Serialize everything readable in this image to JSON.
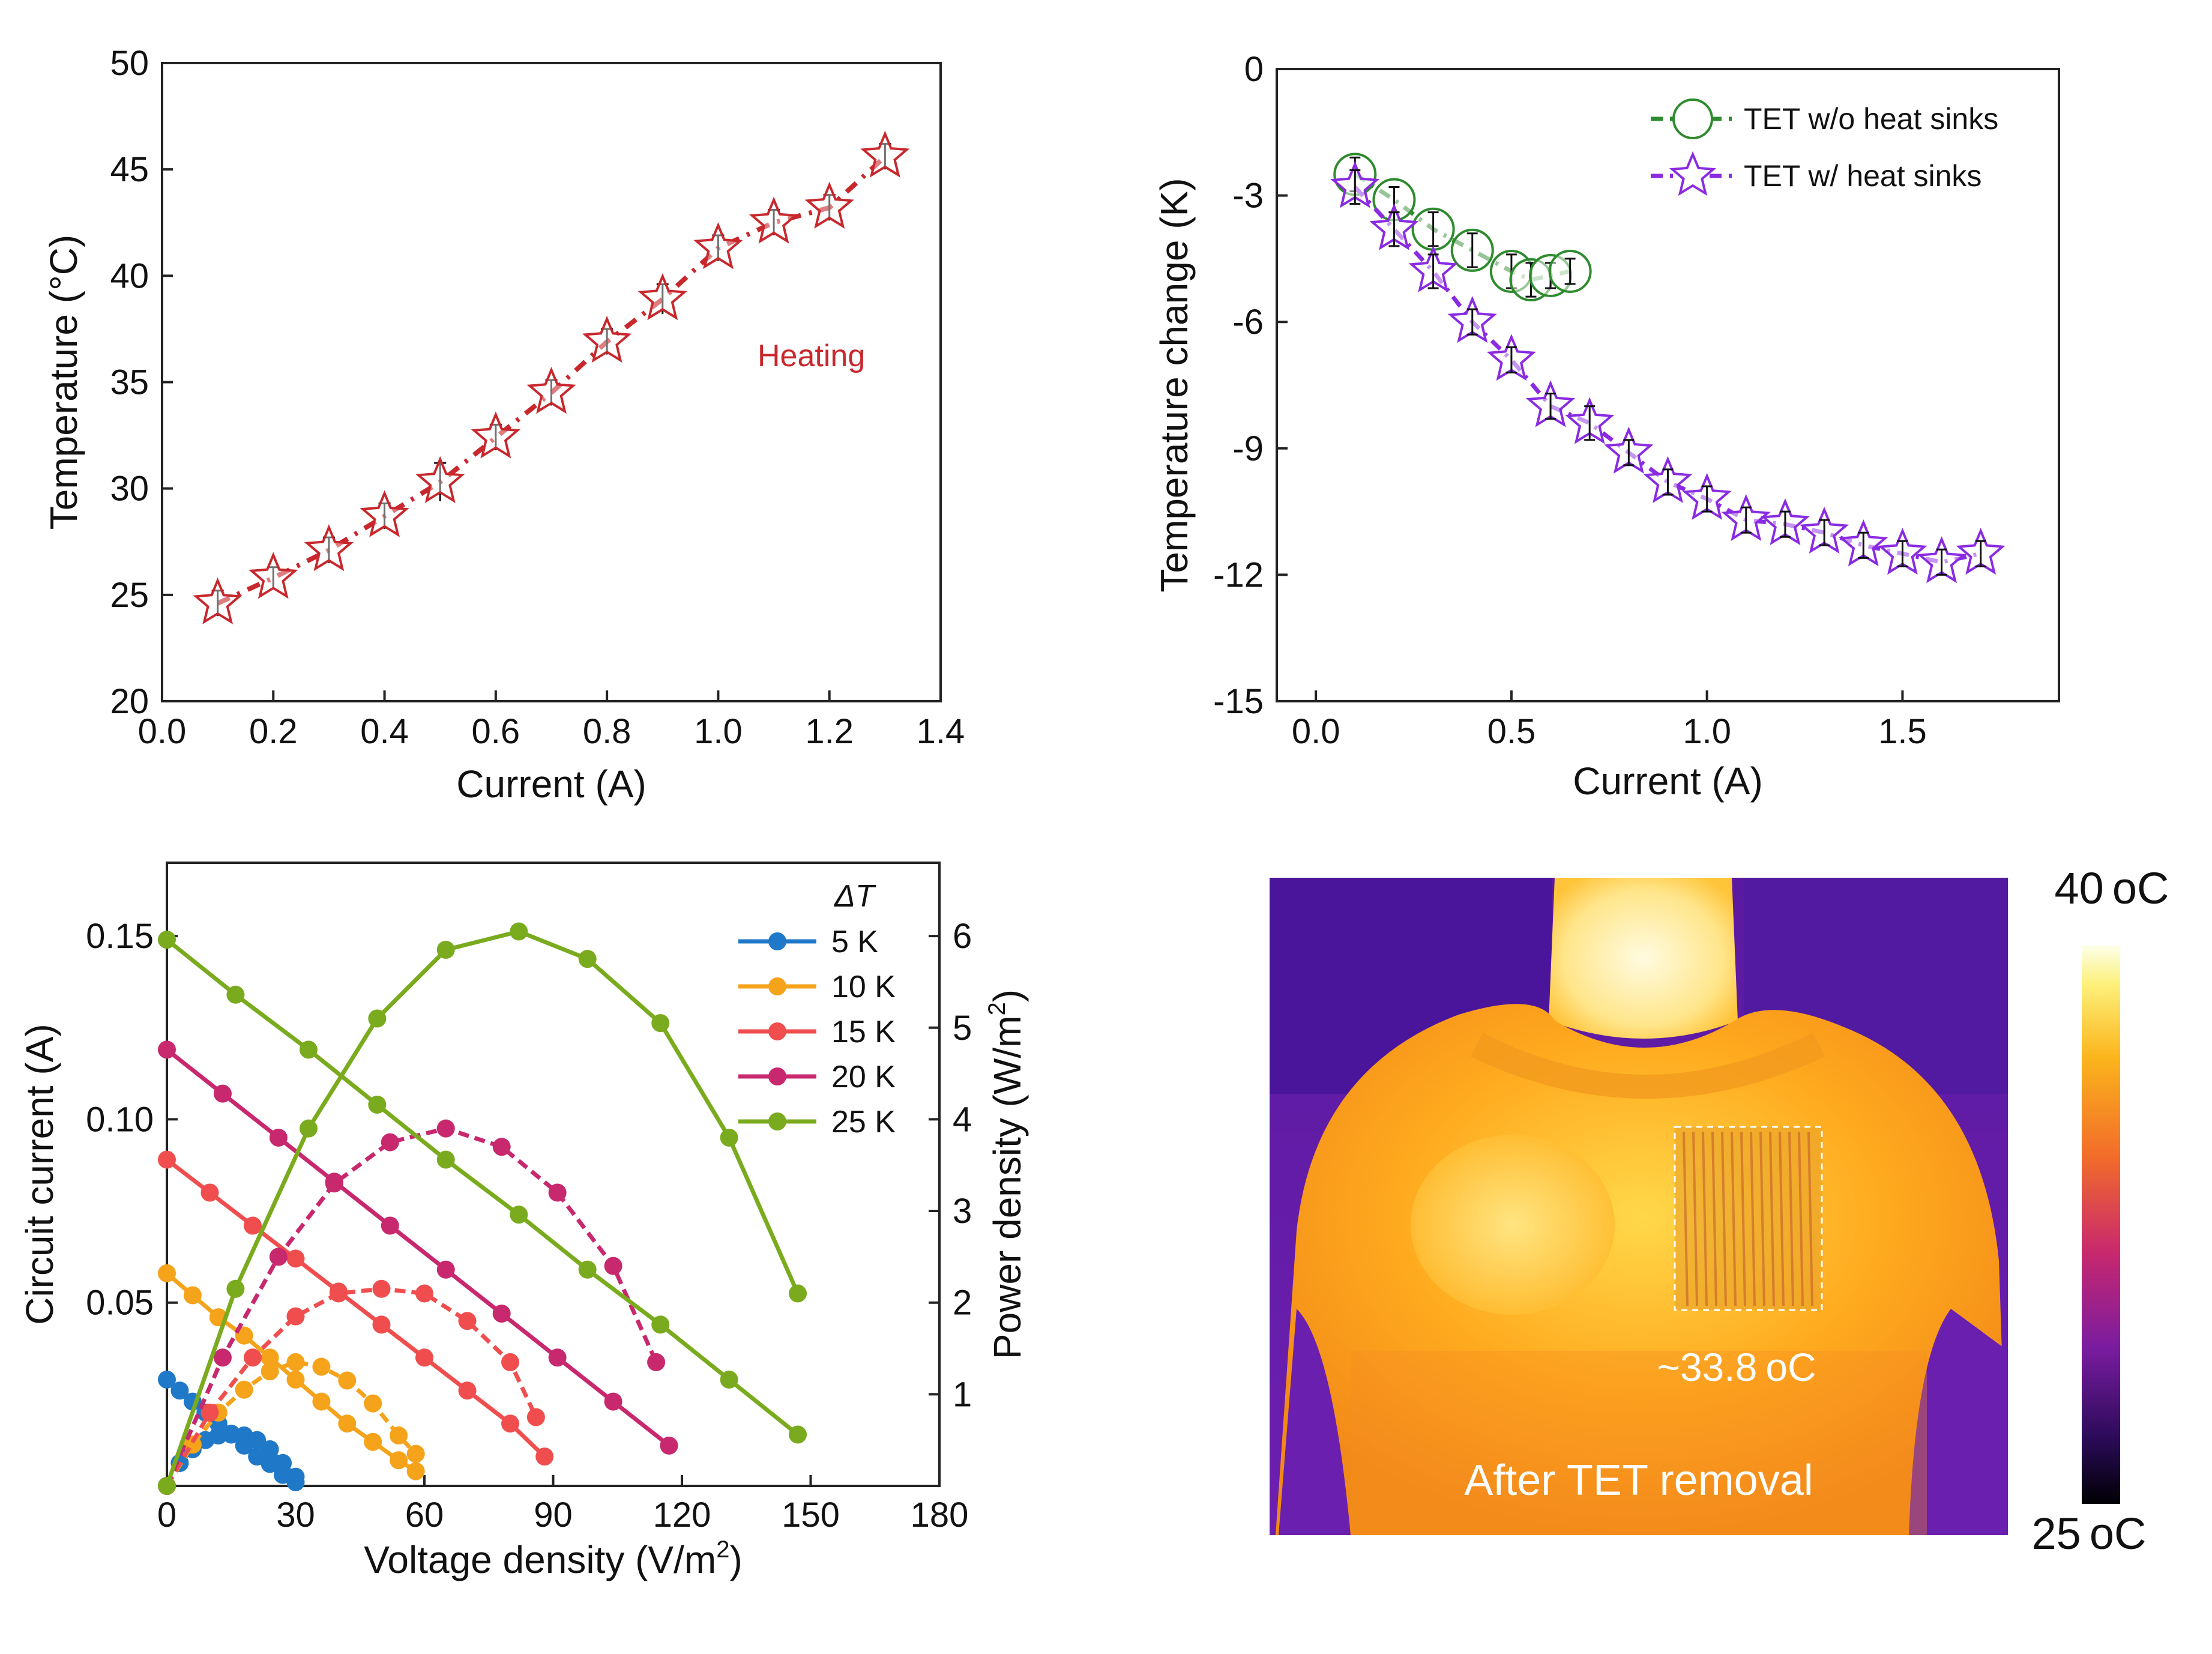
{
  "colors": {
    "heating": "#c8282d",
    "no_sinks": "#2e8b2e",
    "with_sinks": "#8a2be2",
    "s5": "#1f78c8",
    "s10": "#f5a31a",
    "s15": "#f04e4e",
    "s20": "#c8286e",
    "s25": "#7aab1e"
  },
  "chart_data": [
    {
      "id": "a",
      "type": "line",
      "xlabel": "Current (A)",
      "ylabel": "Temperature (°C)",
      "xlim": [
        0.0,
        1.4
      ],
      "ylim": [
        20,
        50
      ],
      "xticks": [
        "0.0",
        "0.2",
        "0.4",
        "0.6",
        "0.8",
        "1.0",
        "1.2",
        "1.4"
      ],
      "yticks": [
        "20",
        "25",
        "30",
        "35",
        "40",
        "45",
        "50"
      ],
      "annotation": "Heating",
      "series": [
        {
          "x": [
            0.1,
            0.2,
            0.3,
            0.4,
            0.5,
            0.6,
            0.7,
            0.8,
            0.9,
            1.0,
            1.1,
            1.2,
            1.3
          ],
          "y": [
            24.6,
            25.8,
            27.1,
            28.7,
            30.3,
            32.4,
            34.5,
            36.9,
            38.9,
            41.3,
            42.5,
            43.2,
            45.6
          ],
          "err": [
            0.6,
            0.5,
            0.6,
            0.6,
            0.9,
            0.6,
            0.6,
            0.6,
            0.7,
            0.6,
            0.6,
            0.6,
            0.6
          ]
        }
      ]
    },
    {
      "id": "b",
      "type": "line",
      "xlabel": "Current (A)",
      "ylabel": "Temperature change (K)",
      "xlim": [
        -0.1,
        1.9
      ],
      "ylim": [
        -15,
        0
      ],
      "xticks": [
        "0.0",
        "0.5",
        "1.0",
        "1.5"
      ],
      "yticks": [
        "-15",
        "-12",
        "-9",
        "-6",
        "-3",
        "0"
      ],
      "series": [
        {
          "name": "TET w/o heat sinks",
          "x": [
            0.1,
            0.2,
            0.3,
            0.4,
            0.5,
            0.55,
            0.6,
            0.65
          ],
          "y": [
            -2.5,
            -3.1,
            -3.8,
            -4.3,
            -4.8,
            -5.0,
            -4.9,
            -4.8
          ],
          "err": [
            0.4,
            0.3,
            0.4,
            0.4,
            0.4,
            0.4,
            0.3,
            0.3
          ]
        },
        {
          "name": "TET w/ heat sinks",
          "x": [
            0.1,
            0.2,
            0.3,
            0.4,
            0.5,
            0.6,
            0.7,
            0.8,
            0.9,
            1.0,
            1.1,
            1.2,
            1.3,
            1.4,
            1.5,
            1.6,
            1.7
          ],
          "y": [
            -2.8,
            -3.8,
            -4.8,
            -6.0,
            -6.9,
            -8.0,
            -8.4,
            -9.1,
            -9.8,
            -10.2,
            -10.7,
            -10.8,
            -11.0,
            -11.3,
            -11.5,
            -11.7,
            -11.5
          ],
          "err": [
            0.4,
            0.4,
            0.4,
            0.3,
            0.3,
            0.3,
            0.4,
            0.3,
            0.3,
            0.3,
            0.3,
            0.3,
            0.3,
            0.3,
            0.3,
            0.3,
            0.3
          ]
        }
      ]
    },
    {
      "id": "c",
      "type": "line",
      "xlabel": "Voltage density (V/m",
      "xlabel_sup": "2",
      "xlabel_end": ")",
      "ylabel": "Circuit current (A)",
      "y2label": "Power density (W/m",
      "y2label_sup": "2",
      "y2label_end": ")",
      "xlim": [
        0,
        180
      ],
      "ylim": [
        0,
        0.17
      ],
      "y2lim": [
        0,
        6.8
      ],
      "xticks": [
        "0",
        "30",
        "60",
        "90",
        "120",
        "150",
        "180"
      ],
      "yticks": [
        "0.05",
        "0.10",
        "0.15"
      ],
      "y2ticks": [
        "1",
        "2",
        "3",
        "4",
        "5",
        "6"
      ],
      "legend_title": "ΔT",
      "series": [
        {
          "name": "5 K",
          "x": [
            0,
            3,
            6,
            9,
            12,
            15,
            18,
            21,
            24,
            27,
            30
          ],
          "y": [
            0.029,
            0.026,
            0.023,
            0.02,
            0.017,
            0.014,
            0.011,
            0.008,
            0.006,
            0.003,
            0.001
          ],
          "power_x": [
            0,
            3,
            6,
            9,
            12,
            15,
            18,
            21,
            24,
            27,
            30
          ],
          "power": [
            0.0,
            0.25,
            0.4,
            0.5,
            0.55,
            0.57,
            0.55,
            0.5,
            0.4,
            0.25,
            0.1
          ]
        },
        {
          "name": "10 K",
          "x": [
            0,
            6,
            12,
            18,
            24,
            30,
            36,
            42,
            48,
            54,
            58
          ],
          "y": [
            0.058,
            0.052,
            0.046,
            0.041,
            0.035,
            0.029,
            0.023,
            0.017,
            0.012,
            0.007,
            0.004
          ],
          "power_x": [
            0,
            6,
            12,
            18,
            24,
            30,
            36,
            42,
            48,
            54,
            58
          ],
          "power": [
            0.0,
            0.45,
            0.8,
            1.05,
            1.25,
            1.35,
            1.3,
            1.15,
            0.9,
            0.55,
            0.35
          ]
        },
        {
          "name": "15 K",
          "x": [
            0,
            10,
            20,
            30,
            40,
            50,
            60,
            70,
            80,
            88
          ],
          "y": [
            0.089,
            0.08,
            0.071,
            0.062,
            0.053,
            0.044,
            0.035,
            0.026,
            0.017,
            0.008
          ],
          "power_x": [
            0,
            10,
            20,
            30,
            40,
            50,
            60,
            70,
            80,
            86
          ],
          "power": [
            0.0,
            0.8,
            1.4,
            1.85,
            2.1,
            2.15,
            2.1,
            1.8,
            1.35,
            0.75
          ]
        },
        {
          "name": "20 K",
          "x": [
            0,
            13,
            26,
            39,
            52,
            65,
            78,
            91,
            104,
            117
          ],
          "y": [
            0.119,
            0.107,
            0.095,
            0.083,
            0.071,
            0.059,
            0.047,
            0.035,
            0.023,
            0.011
          ],
          "power_x": [
            0,
            13,
            26,
            39,
            52,
            65,
            78,
            91,
            104,
            114
          ],
          "power": [
            0.0,
            1.4,
            2.5,
            3.3,
            3.75,
            3.9,
            3.7,
            3.2,
            2.4,
            1.35
          ]
        },
        {
          "name": "25 K",
          "x": [
            0,
            16,
            33,
            49,
            65,
            82,
            98,
            115,
            131,
            147
          ],
          "y": [
            0.149,
            0.134,
            0.119,
            0.104,
            0.089,
            0.074,
            0.059,
            0.044,
            0.029,
            0.014
          ],
          "power_x": [
            0,
            16,
            33,
            49,
            65,
            82,
            98,
            115,
            131,
            147
          ],
          "power": [
            0.0,
            2.15,
            3.9,
            5.1,
            5.85,
            6.05,
            5.75,
            5.05,
            3.8,
            2.1
          ]
        }
      ]
    }
  ],
  "thermal": {
    "colorbar_max": "40 °C",
    "colorbar_max_num": "40",
    "colorbar_max_unit": "oC",
    "colorbar_min_num": "25",
    "colorbar_min_unit": "oC",
    "spot_temp_num": "~33.8",
    "spot_temp_unit": "oC",
    "caption": "After TET removal"
  }
}
